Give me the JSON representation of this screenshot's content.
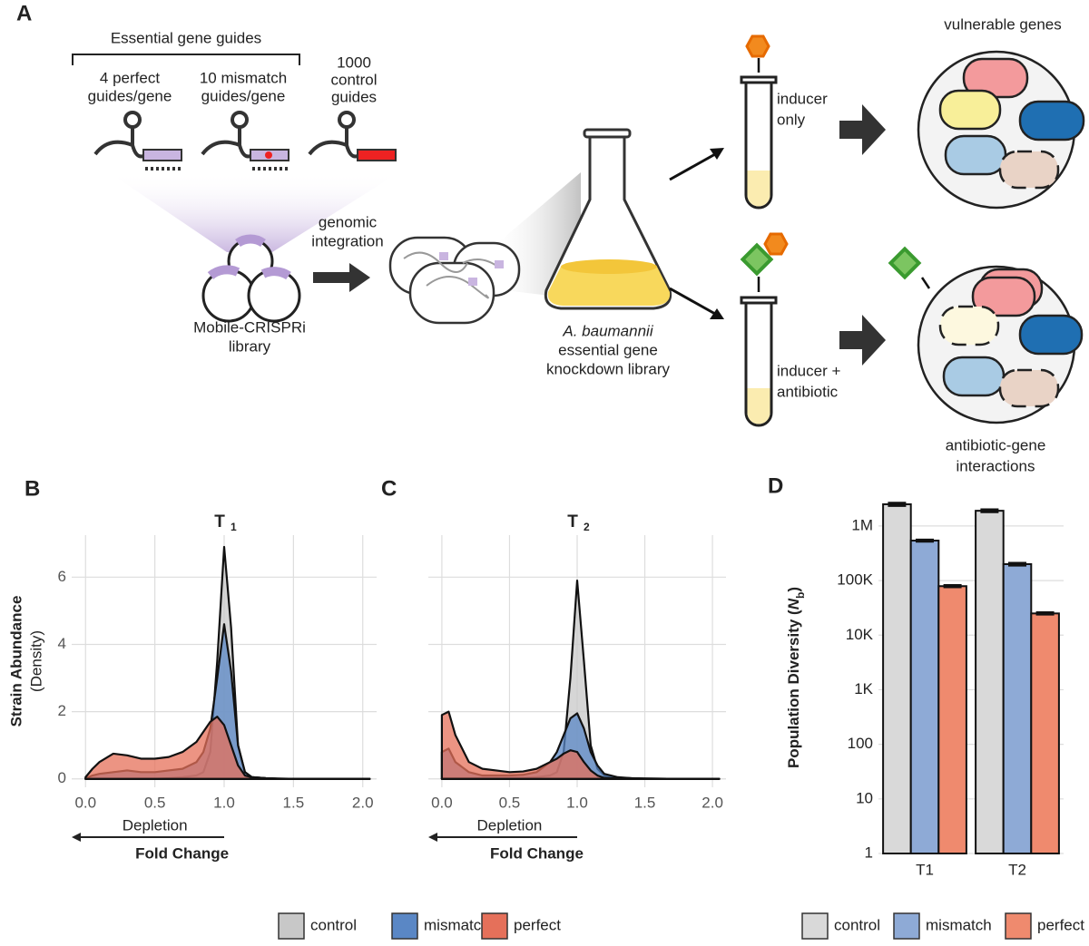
{
  "diagram": {
    "panel_label": "A",
    "guide_header": "Essential gene guides",
    "guides": [
      [
        "4 perfect",
        "guides/gene"
      ],
      [
        "10 mismatch",
        "guides/gene"
      ],
      [
        "1000",
        "control",
        "guides"
      ]
    ],
    "library": [
      "Mobile-CRISPRi",
      "library"
    ],
    "integration": [
      "genomic",
      "integration"
    ],
    "strain_library": [
      "A. baumannii",
      "essential gene",
      "knockdown library"
    ],
    "conditions": [
      [
        "inducer",
        "only"
      ],
      [
        "inducer +",
        "antibiotic"
      ]
    ],
    "outcomes": [
      [
        "vulnerable genes"
      ],
      [
        "antibiotic-gene",
        "interactions"
      ]
    ]
  },
  "chart_data": [
    {
      "type": "density",
      "panel_label": "B",
      "title": "T",
      "title_subscript": "1",
      "ylabel": [
        "Strain Abundance",
        "(Density)"
      ],
      "xlabel": "Fold Change",
      "annotation": "Depletion",
      "x": [
        0,
        0.05,
        0.1,
        0.2,
        0.3,
        0.4,
        0.5,
        0.6,
        0.7,
        0.8,
        0.85,
        0.9,
        0.95,
        1.0,
        1.05,
        1.1,
        1.15,
        1.2,
        1.3,
        1.4,
        1.5,
        1.75,
        2.0,
        2.05
      ],
      "series": [
        {
          "name": "control",
          "color": "#c8c8c8",
          "values": [
            0,
            0,
            0,
            0,
            0,
            0,
            0,
            0.02,
            0.05,
            0.1,
            0.2,
            0.8,
            3.5,
            6.9,
            4.5,
            1.0,
            0.2,
            0.05,
            0.02,
            0,
            0,
            0,
            0,
            0
          ]
        },
        {
          "name": "mismatch",
          "color": "#5a87c5",
          "values": [
            0.02,
            0.1,
            0.15,
            0.2,
            0.25,
            0.2,
            0.2,
            0.25,
            0.3,
            0.5,
            0.8,
            1.5,
            3.0,
            4.6,
            3.2,
            1.0,
            0.2,
            0.05,
            0.02,
            0,
            0,
            0,
            0,
            0
          ]
        },
        {
          "name": "perfect",
          "color": "#e5705a",
          "values": [
            0.05,
            0.3,
            0.5,
            0.75,
            0.7,
            0.6,
            0.6,
            0.65,
            0.8,
            1.1,
            1.4,
            1.7,
            1.85,
            1.6,
            1.0,
            0.4,
            0.1,
            0.05,
            0.02,
            0.01,
            0,
            0,
            0,
            0
          ]
        }
      ],
      "xlim": [
        -0.1,
        2.1
      ],
      "xticks": [
        {
          "value": 0,
          "label": "0.0"
        },
        0.5,
        {
          "value": 1,
          "label": "1.0"
        },
        1.5,
        {
          "value": 2,
          "label": "2.0"
        }
      ],
      "ylim": [
        -0.25,
        7.25
      ],
      "yticks": [
        0,
        2,
        4,
        6
      ],
      "grid": true
    },
    {
      "type": "density",
      "panel_label": "C",
      "title": "T",
      "title_subscript": "2",
      "xlabel": "Fold Change",
      "annotation": "Depletion",
      "x": [
        0,
        0.05,
        0.1,
        0.2,
        0.3,
        0.4,
        0.5,
        0.6,
        0.7,
        0.8,
        0.85,
        0.9,
        0.95,
        1.0,
        1.05,
        1.1,
        1.15,
        1.2,
        1.3,
        1.4,
        1.5,
        1.75,
        2.0,
        2.05
      ],
      "series": [
        {
          "name": "control",
          "color": "#c8c8c8",
          "values": [
            0.02,
            0.02,
            0.02,
            0.02,
            0.02,
            0.02,
            0.02,
            0.02,
            0.05,
            0.1,
            0.2,
            0.8,
            3.0,
            5.9,
            3.5,
            1.0,
            0.3,
            0.1,
            0.03,
            0.02,
            0.01,
            0,
            0,
            0
          ]
        },
        {
          "name": "mismatch",
          "color": "#5a87c5",
          "values": [
            0.8,
            0.9,
            0.5,
            0.2,
            0.1,
            0.1,
            0.1,
            0.12,
            0.2,
            0.5,
            0.8,
            1.3,
            1.8,
            1.95,
            1.5,
            0.8,
            0.4,
            0.15,
            0.05,
            0.02,
            0.01,
            0,
            0,
            0
          ]
        },
        {
          "name": "perfect",
          "color": "#e5705a",
          "values": [
            1.9,
            2.0,
            1.3,
            0.5,
            0.3,
            0.25,
            0.2,
            0.22,
            0.3,
            0.5,
            0.6,
            0.75,
            0.85,
            0.8,
            0.5,
            0.25,
            0.1,
            0.03,
            0.01,
            0,
            0,
            0,
            0,
            0
          ]
        }
      ],
      "xlim": [
        -0.1,
        2.1
      ],
      "xticks": [
        {
          "value": 0,
          "label": "0.0"
        },
        0.5,
        {
          "value": 1,
          "label": "1.0"
        },
        1.5,
        {
          "value": 2,
          "label": "2.0"
        }
      ],
      "ylim": [
        -0.25,
        7.25
      ],
      "yticks": [
        0,
        2,
        4,
        6
      ],
      "grid": true
    },
    {
      "type": "bar",
      "panel_label": "D",
      "ylabel_parts": [
        "Population Diversity (",
        "N",
        "b",
        ")"
      ],
      "categories": [
        "T1",
        "T2"
      ],
      "series": [
        {
          "name": "control",
          "color": "#d9d9d9",
          "values": [
            2500000,
            1900000
          ],
          "errors": [
            150000,
            100000
          ]
        },
        {
          "name": "mismatch",
          "color": "#8eaad6",
          "values": [
            540000,
            200000
          ],
          "errors": [
            20000,
            10000
          ]
        },
        {
          "name": "perfect",
          "color": "#ef8a6e",
          "values": [
            79000,
            25000
          ],
          "errors": [
            3000,
            1000
          ]
        }
      ],
      "log_scale": true,
      "ylim": [
        1,
        2800000
      ],
      "yticks": [
        1,
        10,
        100,
        {
          "value": 1000,
          "label": "1K"
        },
        {
          "value": 10000,
          "label": "10K"
        },
        {
          "value": 100000,
          "label": "100K"
        },
        {
          "value": 1000000,
          "label": "1M"
        }
      ],
      "grid": true
    }
  ]
}
